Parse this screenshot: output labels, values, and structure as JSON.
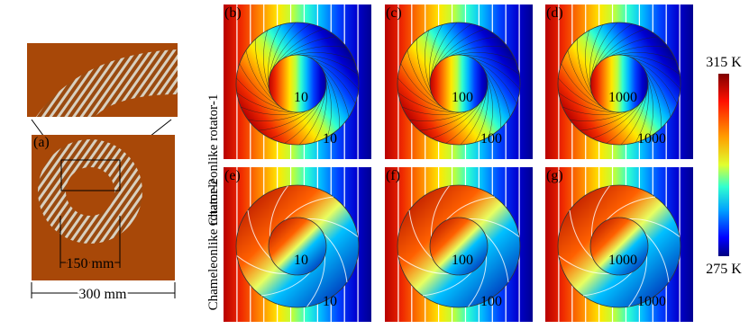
{
  "panel_a": {
    "label": "(a)",
    "inner_dimension": "150 mm",
    "outer_dimension": "300 mm"
  },
  "row_labels": [
    "Chameleonlike rotator-1",
    "Chameleonlike rotator-2"
  ],
  "panels": [
    {
      "label": "(b)",
      "inner_value": "10",
      "outer_value": "10"
    },
    {
      "label": "(c)",
      "inner_value": "100",
      "outer_value": "100"
    },
    {
      "label": "(d)",
      "inner_value": "1000",
      "outer_value": "1000"
    },
    {
      "label": "(e)",
      "inner_value": "10",
      "outer_value": "10"
    },
    {
      "label": "(f)",
      "inner_value": "100",
      "outer_value": "100"
    },
    {
      "label": "(g)",
      "inner_value": "1000",
      "outer_value": "1000"
    }
  ],
  "colorbar": {
    "max_label": "315 K",
    "min_label": "275 K"
  }
}
